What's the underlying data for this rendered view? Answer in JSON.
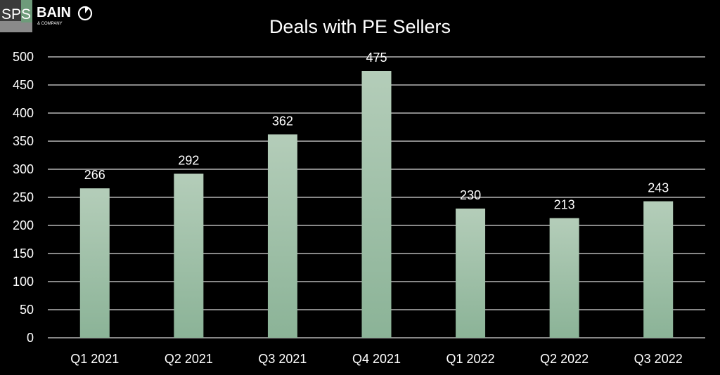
{
  "logo": {
    "mark": "SPS",
    "brand": "BAIN",
    "sub": "& COMPANY",
    "icon": "bain-circle-icon"
  },
  "colors": {
    "background": "#000000",
    "bar_top": "#b4cdb9",
    "bar_bottom": "#8bb397",
    "gridline": "#d9d9d9",
    "text": "#ffffff"
  },
  "chart_data": {
    "type": "bar",
    "title": "Deals with PE Sellers",
    "categories": [
      "Q1 2021",
      "Q2 2021",
      "Q3 2021",
      "Q4 2021",
      "Q1 2022",
      "Q2 2022",
      "Q3 2022"
    ],
    "values": [
      266,
      292,
      362,
      475,
      230,
      213,
      243
    ],
    "xlabel": "",
    "ylabel": "",
    "ylim": [
      0,
      500
    ],
    "yticks": [
      0,
      50,
      100,
      150,
      200,
      250,
      300,
      350,
      400,
      450,
      500
    ],
    "grid": true,
    "legend": "none",
    "data_labels": true
  }
}
